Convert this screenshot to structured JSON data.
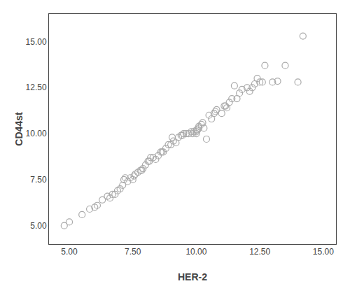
{
  "chart_data": {
    "type": "scatter",
    "xlabel": "HER-2",
    "ylabel": "CD44st",
    "x": [
      4.8,
      5.0,
      5.5,
      5.8,
      6.0,
      6.1,
      6.3,
      6.5,
      6.6,
      6.7,
      6.8,
      6.9,
      7.0,
      7.1,
      7.15,
      7.2,
      7.3,
      7.4,
      7.5,
      7.55,
      7.6,
      7.7,
      7.8,
      7.85,
      7.9,
      8.0,
      8.1,
      8.15,
      8.2,
      8.3,
      8.4,
      8.5,
      8.6,
      8.65,
      8.7,
      8.8,
      8.9,
      9.0,
      9.05,
      9.1,
      9.2,
      9.3,
      9.4,
      9.45,
      9.5,
      9.6,
      9.7,
      9.8,
      9.85,
      9.9,
      10.0,
      10.0,
      10.0,
      10.05,
      10.1,
      10.1,
      10.2,
      10.25,
      10.3,
      10.4,
      10.5,
      10.6,
      10.7,
      10.75,
      10.8,
      11.0,
      11.1,
      11.15,
      11.2,
      11.3,
      11.4,
      11.5,
      11.6,
      11.7,
      11.8,
      12.0,
      12.1,
      12.2,
      12.3,
      12.4,
      12.5,
      12.6,
      12.7,
      13.0,
      13.2,
      13.5,
      14.0,
      14.2
    ],
    "values": [
      5.0,
      5.2,
      5.6,
      5.9,
      6.0,
      6.1,
      6.4,
      6.6,
      6.5,
      6.7,
      6.7,
      6.9,
      7.0,
      7.2,
      7.5,
      7.6,
      7.4,
      7.6,
      7.5,
      7.7,
      7.8,
      7.9,
      8.0,
      8.0,
      8.1,
      8.3,
      8.5,
      8.5,
      8.7,
      8.7,
      8.6,
      8.8,
      9.0,
      9.0,
      9.0,
      9.2,
      9.4,
      9.4,
      9.8,
      9.6,
      9.5,
      9.8,
      9.9,
      9.9,
      10.0,
      10.0,
      10.0,
      10.1,
      10.0,
      10.1,
      10.0,
      10.1,
      10.2,
      10.2,
      10.3,
      10.4,
      10.5,
      10.6,
      10.3,
      9.7,
      11.0,
      10.8,
      11.1,
      11.2,
      11.3,
      11.1,
      11.5,
      11.5,
      11.4,
      11.7,
      11.9,
      12.6,
      11.9,
      12.2,
      12.4,
      12.5,
      12.3,
      12.5,
      12.7,
      13.0,
      12.8,
      12.8,
      13.7,
      12.8,
      12.85,
      13.7,
      12.8,
      15.3
    ],
    "xlim": [
      4.2,
      15.5
    ],
    "ylim": [
      4.0,
      16.5
    ],
    "xticks": [
      {
        "value": 5,
        "label": "5.00"
      },
      {
        "value": 7.5,
        "label": "7.50"
      },
      {
        "value": 10,
        "label": "10.00"
      },
      {
        "value": 12.5,
        "label": "12.50"
      },
      {
        "value": 15,
        "label": "15.00"
      }
    ],
    "yticks": [
      {
        "value": 5,
        "label": "5.00"
      },
      {
        "value": 7.5,
        "label": "7.50"
      },
      {
        "value": 10,
        "label": "10.00"
      },
      {
        "value": 12.5,
        "label": "12.50"
      },
      {
        "value": 15,
        "label": "15.00"
      }
    ],
    "color": "#aaaaaa",
    "marker": "circle-open",
    "grid": false
  }
}
